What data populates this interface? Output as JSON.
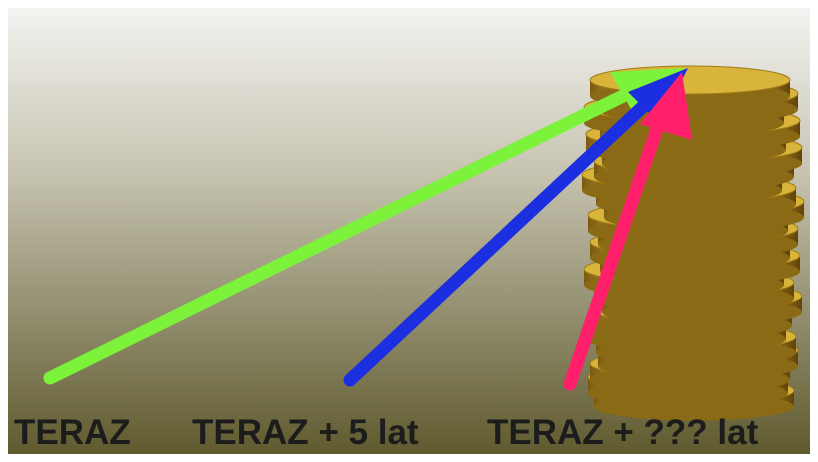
{
  "labels": [
    "TERAZ",
    "TERAZ + 5 lat",
    "TERAZ + ??? lat"
  ]
}
